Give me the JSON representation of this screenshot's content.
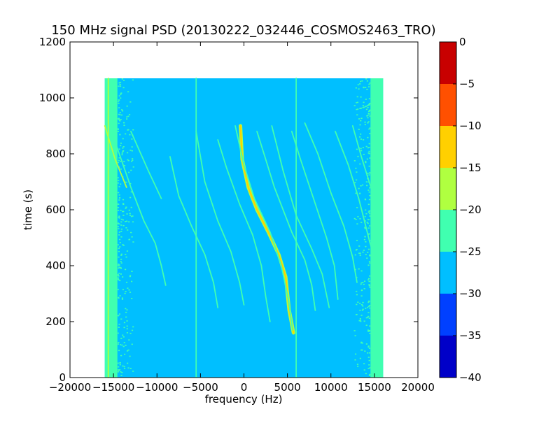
{
  "chart_data": {
    "type": "heatmap",
    "title": "150 MHz signal PSD (20130222_032446_COSMOS2463_TRO)",
    "xlabel": "frequency (Hz)",
    "ylabel": "time (s)",
    "xlim": [
      -20000,
      20000
    ],
    "ylim": [
      0,
      1200
    ],
    "xticks": [
      -20000,
      -15000,
      -10000,
      -5000,
      0,
      5000,
      10000,
      15000,
      20000
    ],
    "yticks": [
      0,
      200,
      400,
      600,
      800,
      1000,
      1200
    ],
    "data_extent": {
      "freq": [
        -16000,
        16000
      ],
      "time": [
        0,
        1070
      ]
    },
    "background_level": -27,
    "edge_level": -22,
    "colorbar": {
      "ticks": [
        0,
        -5,
        -10,
        -15,
        -20,
        -25,
        -30,
        -35,
        -40
      ],
      "levels": [
        {
          "from": -40,
          "to": -35,
          "color": "#0000c8"
        },
        {
          "from": -35,
          "to": -30,
          "color": "#0040ff"
        },
        {
          "from": -30,
          "to": -25,
          "color": "#00bfff"
        },
        {
          "from": -25,
          "to": -20,
          "color": "#40ffb0"
        },
        {
          "from": -20,
          "to": -15,
          "color": "#b0ff40"
        },
        {
          "from": -15,
          "to": -10,
          "color": "#ffd000"
        },
        {
          "from": -10,
          "to": -5,
          "color": "#ff5000"
        },
        {
          "from": -5,
          "to": 0,
          "color": "#c80000"
        }
      ]
    },
    "tracks": [
      {
        "level": -12,
        "points": [
          [
            -400,
            900
          ],
          [
            -200,
            780
          ],
          [
            500,
            680
          ],
          [
            1500,
            600
          ],
          [
            2800,
            520
          ],
          [
            4000,
            440
          ],
          [
            4800,
            360
          ],
          [
            5200,
            240
          ],
          [
            5700,
            160
          ]
        ]
      },
      {
        "level": -20,
        "points": [
          [
            -16000,
            900
          ],
          [
            -14800,
            780
          ],
          [
            -13500,
            680
          ]
        ]
      },
      {
        "level": -22,
        "points": [
          [
            -15000,
            860
          ],
          [
            -13000,
            680
          ],
          [
            -11500,
            560
          ],
          [
            -10200,
            480
          ],
          [
            -9500,
            400
          ],
          [
            -9000,
            330
          ]
        ]
      },
      {
        "level": -22,
        "points": [
          [
            -13000,
            880
          ],
          [
            -11000,
            740
          ],
          [
            -9500,
            640
          ]
        ]
      },
      {
        "level": -22,
        "points": [
          [
            -8500,
            790
          ],
          [
            -7500,
            650
          ],
          [
            -6000,
            540
          ],
          [
            -4500,
            440
          ],
          [
            -3500,
            340
          ],
          [
            -3000,
            250
          ]
        ]
      },
      {
        "level": -21,
        "points": [
          [
            -5500,
            880
          ],
          [
            -4500,
            700
          ],
          [
            -3000,
            560
          ],
          [
            -1500,
            450
          ],
          [
            -500,
            340
          ],
          [
            0,
            260
          ]
        ]
      },
      {
        "level": -21,
        "points": [
          [
            -3000,
            850
          ],
          [
            -2000,
            750
          ],
          [
            -500,
            620
          ],
          [
            1000,
            510
          ],
          [
            2000,
            400
          ],
          [
            2500,
            290
          ],
          [
            3000,
            200
          ]
        ]
      },
      {
        "level": -21,
        "points": [
          [
            -1000,
            900
          ],
          [
            0,
            760
          ],
          [
            1200,
            640
          ],
          [
            3000,
            520
          ],
          [
            4300,
            400
          ],
          [
            5100,
            280
          ],
          [
            5600,
            170
          ]
        ]
      },
      {
        "level": -22,
        "points": [
          [
            1500,
            880
          ],
          [
            2500,
            780
          ],
          [
            3500,
            680
          ],
          [
            5500,
            520
          ],
          [
            7000,
            420
          ],
          [
            7800,
            330
          ],
          [
            8200,
            240
          ]
        ]
      },
      {
        "level": -22,
        "points": [
          [
            3200,
            900
          ],
          [
            4500,
            740
          ],
          [
            6000,
            580
          ],
          [
            7800,
            460
          ],
          [
            9000,
            370
          ],
          [
            9800,
            250
          ]
        ]
      },
      {
        "level": -22,
        "points": [
          [
            5500,
            880
          ],
          [
            6500,
            780
          ],
          [
            8000,
            640
          ],
          [
            9500,
            500
          ],
          [
            10400,
            400
          ],
          [
            10800,
            280
          ]
        ]
      },
      {
        "level": -22,
        "points": [
          [
            7000,
            910
          ],
          [
            8500,
            800
          ],
          [
            10000,
            660
          ],
          [
            11500,
            540
          ],
          [
            12500,
            430
          ],
          [
            13000,
            340
          ]
        ]
      },
      {
        "level": -21,
        "points": [
          [
            10500,
            880
          ],
          [
            12000,
            760
          ],
          [
            13200,
            640
          ],
          [
            14500,
            480
          ],
          [
            15500,
            380
          ]
        ]
      },
      {
        "level": -22,
        "points": [
          [
            12500,
            900
          ],
          [
            13500,
            790
          ],
          [
            14800,
            660
          ],
          [
            15800,
            560
          ]
        ]
      },
      {
        "level": -20,
        "points": [
          [
            -15600,
            1070
          ],
          [
            -15600,
            0
          ]
        ]
      },
      {
        "level": -22,
        "points": [
          [
            -5500,
            1070
          ],
          [
            -5500,
            0
          ]
        ]
      },
      {
        "level": -22,
        "points": [
          [
            6000,
            1070
          ],
          [
            6000,
            0
          ]
        ]
      }
    ]
  }
}
